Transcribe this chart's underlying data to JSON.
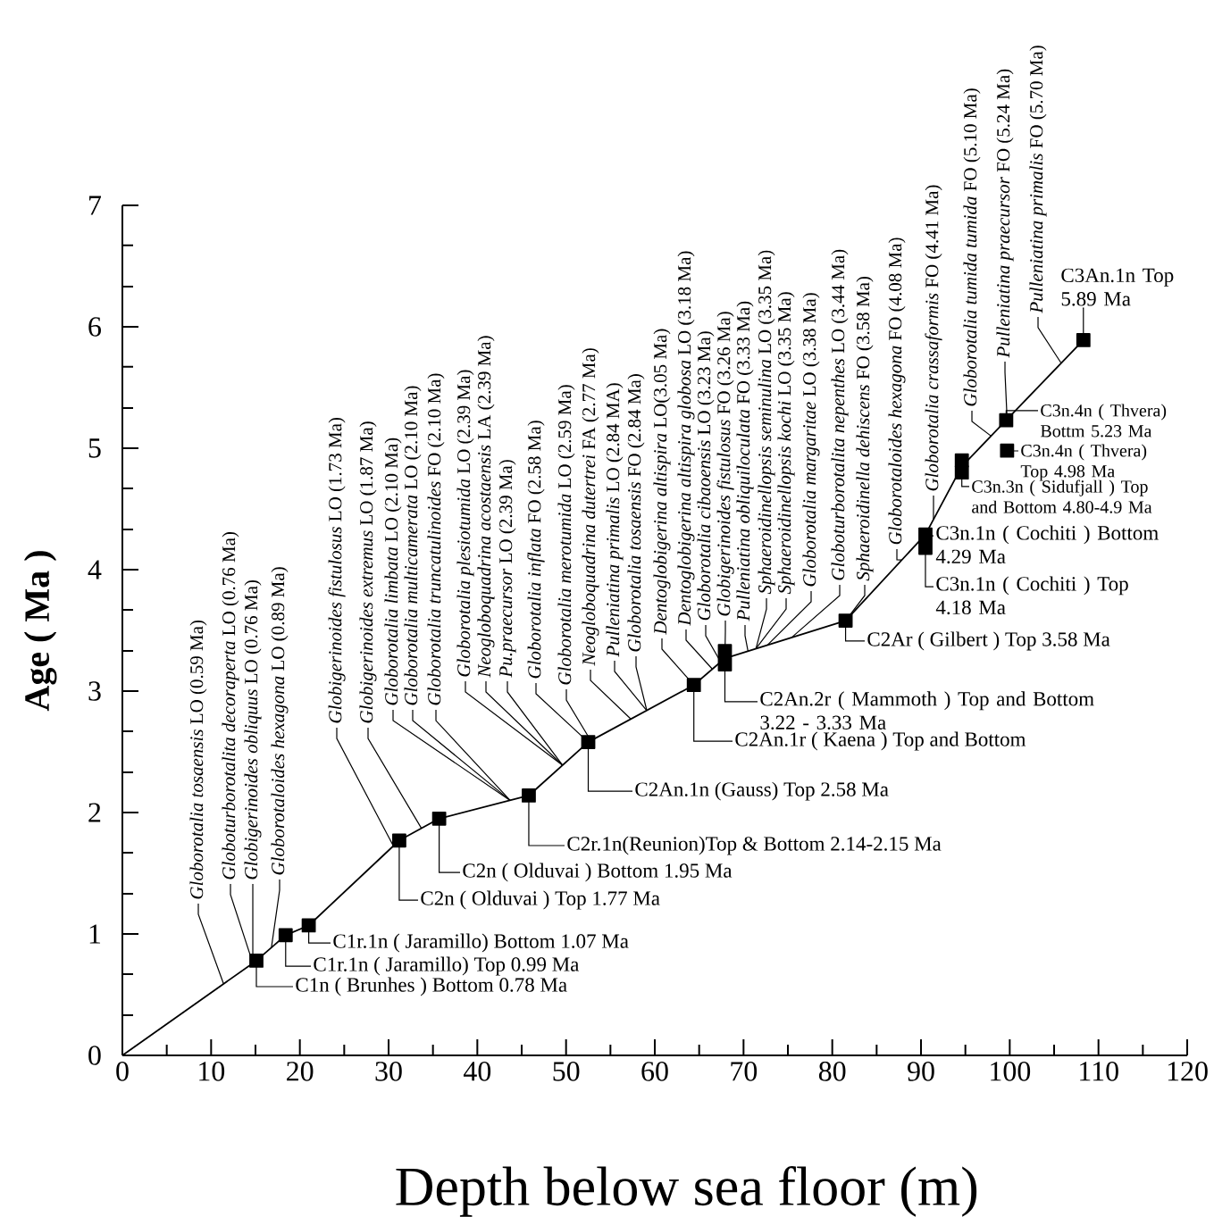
{
  "chart_data": {
    "type": "line",
    "xlabel": "Depth below sea floor (m)",
    "ylabel": "Age ( Ma )",
    "xlim": [
      0,
      120
    ],
    "ylim": [
      0,
      7
    ],
    "xticks": [
      0,
      {
        "value": 5,
        "label": null
      },
      10,
      {
        "value": 15,
        "label": null
      },
      20,
      {
        "value": 25,
        "label": null
      },
      30,
      {
        "value": 35,
        "label": null
      },
      40,
      {
        "value": 45,
        "label": null
      },
      50,
      {
        "value": 55,
        "label": null
      },
      60,
      {
        "value": 65,
        "label": null
      },
      70,
      {
        "value": 75,
        "label": null
      },
      80,
      {
        "value": 85,
        "label": null
      },
      90,
      {
        "value": 95,
        "label": null
      },
      100,
      {
        "value": 105,
        "label": null
      },
      110,
      {
        "value": 115,
        "label": null
      },
      120
    ],
    "yticks": [
      0,
      {
        "value": 0.33,
        "label": null
      },
      {
        "value": 0.67,
        "label": null
      },
      1,
      {
        "value": 1.33,
        "label": null
      },
      {
        "value": 1.67,
        "label": null
      },
      2,
      {
        "value": 2.33,
        "label": null
      },
      {
        "value": 2.67,
        "label": null
      },
      3,
      {
        "value": 3.33,
        "label": null
      },
      {
        "value": 3.67,
        "label": null
      },
      4,
      {
        "value": 4.33,
        "label": null
      },
      {
        "value": 4.67,
        "label": null
      },
      5,
      {
        "value": 5.33,
        "label": null
      },
      {
        "value": 5.67,
        "label": null
      },
      6,
      {
        "value": 6.33,
        "label": null
      },
      {
        "value": 6.67,
        "label": null
      },
      7
    ],
    "series": [
      {
        "color": "#000000",
        "marker": "none",
        "x": [
          0,
          15.1,
          18.4,
          21.0,
          31.2,
          35.7,
          45.8,
          52.5,
          64.4,
          67.9,
          81.5,
          90.5,
          94.6,
          99.6,
          108.3
        ],
        "values": [
          0,
          0.78,
          0.99,
          1.07,
          1.77,
          1.95,
          2.14,
          2.58,
          3.05,
          3.27,
          3.58,
          4.29,
          4.85,
          5.23,
          5.89
        ]
      },
      {
        "type": "scatter",
        "color": "#000000",
        "marker": "square",
        "x": [
          15.1,
          18.4,
          21.0,
          31.2,
          35.7,
          45.8,
          52.5,
          64.4,
          67.9,
          67.9,
          81.5,
          90.5,
          90.5,
          94.6,
          94.6,
          99.7,
          99.6,
          108.3
        ],
        "values": [
          0.78,
          0.99,
          1.07,
          1.77,
          1.95,
          2.14,
          2.58,
          3.05,
          3.22,
          3.33,
          3.58,
          4.18,
          4.29,
          4.8,
          4.9,
          4.98,
          5.23,
          5.89
        ]
      }
    ],
    "annotations": [
      {
        "text": "*Globorotalia tosaensis* LO (0.59 Ma)",
        "x": 11.4,
        "y": 0.59
      },
      {
        "text": "*Globoturborotalita decoraperta* LO (0.76 Ma)",
        "x": 14.7,
        "y": 0.76
      },
      {
        "text": "*Globigerinoides obliquus* LO (0.76 Ma)",
        "x": 14.7,
        "y": 0.76
      },
      {
        "text": "*Globorotaloides hexagona* LO (0.89 Ma)",
        "x": 16.8,
        "y": 0.89
      },
      {
        "text": "*Globigerinoides fistulosus* LO (1.73 Ma)",
        "x": 30.5,
        "y": 1.73
      },
      {
        "text": "*Globigerinoides extremus* LO (1.87 Ma)",
        "x": 33.7,
        "y": 1.87
      },
      {
        "text": "*Globorotalia limbata* LO (2.10 Ma)",
        "x": 43.7,
        "y": 2.1
      },
      {
        "text": "*Globorotalia multicamerata* LO (2.10 Ma)",
        "x": 43.7,
        "y": 2.1
      },
      {
        "text": "*Globorotalia truncatulinoides* FO (2.10 Ma)",
        "x": 43.7,
        "y": 2.1
      },
      {
        "text": "*Globorotalia plesiotumida* LO (2.39 Ma)",
        "x": 49.6,
        "y": 2.39
      },
      {
        "text": "*Neogloboquadrina acostaensis* LA (2.39 Ma)",
        "x": 49.6,
        "y": 2.39
      },
      {
        "text": "*Pu.praecursor* LO (2.39 Ma)",
        "x": 49.6,
        "y": 2.39
      },
      {
        "text": "*Globorotalia inflata* FO (2.58 Ma)",
        "x": 52.5,
        "y": 2.58
      },
      {
        "text": "*Globorotalia merotumida* LO (2.59 Ma)",
        "x": 52.8,
        "y": 2.59
      },
      {
        "text": "*Neogloboquadrina dutertrei* FA (2.77 Ma)",
        "x": 57.3,
        "y": 2.77
      },
      {
        "text": "*Pulleniatina primalis* LO (2.84 MA)",
        "x": 59.1,
        "y": 2.84
      },
      {
        "text": "*Globorotalia tosaensis* FO (2.84 Ma)",
        "x": 59.1,
        "y": 2.84
      },
      {
        "text": "*Dentoglobigerina altispira* LO(3.05 Ma)",
        "x": 64.4,
        "y": 3.05
      },
      {
        "text": "*Dentoglobigerina altispira globosa* LO (3.18 Ma)",
        "x": 66.5,
        "y": 3.18
      },
      {
        "text": "*Globorotalia cibaoensis* LO (3.23 Ma)",
        "x": 67.5,
        "y": 3.23
      },
      {
        "text": "*Globigerinoides fistulosus* FO (3.26 Ma)",
        "x": 67.9,
        "y": 3.26
      },
      {
        "text": "*Pulleniatina obliquiloculata* FO (3.33 Ma)",
        "x": 70.5,
        "y": 3.33
      },
      {
        "text": "*Sphaeroidinellopsis seminulina* LO (3.35 Ma)",
        "x": 71.4,
        "y": 3.35
      },
      {
        "text": "*Sphaeroidinellopsis kochi* LO (3.35 Ma)",
        "x": 71.4,
        "y": 3.35
      },
      {
        "text": "*Globorotalia margaritae* LO (3.38 Ma)",
        "x": 72.7,
        "y": 3.38
      },
      {
        "text": "*Globoturborotalita nepenthes* LO (3.44 Ma)",
        "x": 75.4,
        "y": 3.44
      },
      {
        "text": "*Sphaeroidinella dehiscens* FO (3.58 Ma)",
        "x": 81.5,
        "y": 3.58
      },
      {
        "text": "*Globorotaloides hexagona* FO (4.08 Ma)",
        "x": 87.8,
        "y": 4.08
      },
      {
        "text": "*Globorotalia crassaformis* FO (4.41 Ma)",
        "x": 91.4,
        "y": 4.41
      },
      {
        "text": "*Globorotalia tumida tumida* FO (5.10 Ma)",
        "x": 97.9,
        "y": 5.1
      },
      {
        "text": "*Pulleniatina praecursor* FO (5.24 Ma)",
        "x": 99.7,
        "y": 5.24
      },
      {
        "text": "*Pulleniatina primalis* FO (5.70 Ma)",
        "x": 105.8,
        "y": 5.7
      },
      {
        "text": "C1n ( Brunhes ) Bottom 0.78 Ma",
        "x": 15.1,
        "y": 0.78
      },
      {
        "text": "C1r.1n ( Jaramillo) Top 0.99 Ma",
        "x": 18.4,
        "y": 0.99
      },
      {
        "text": "C1r.1n ( Jaramillo) Bottom 1.07 Ma",
        "x": 21.0,
        "y": 1.07
      },
      {
        "text": "C2n ( Olduvai ) Top 1.77 Ma",
        "x": 31.2,
        "y": 1.77
      },
      {
        "text": "C2n ( Olduvai ) Bottom 1.95 Ma",
        "x": 35.7,
        "y": 1.95
      },
      {
        "text": "C2r.1n(Reunion)Top & Bottom 2.14-2.15 Ma",
        "x": 45.8,
        "y": 2.14
      },
      {
        "text": "C2An.1n (Gauss) Top 2.58 Ma",
        "x": 52.5,
        "y": 2.58
      },
      {
        "text": "C2An.1r ( Kaena ) Top and Bottom",
        "x": 64.4,
        "y": 3.05
      },
      {
        "text": "C2An.2r ( Mammoth ) Top and Bottom 3.22 - 3.33 Ma",
        "x": 67.9,
        "y": 3.22
      },
      {
        "text": "C2Ar ( Gilbert ) Top 3.58 Ma",
        "x": 81.5,
        "y": 3.58
      },
      {
        "text": "C3n.1n ( Cochiti ) Top 4.18 Ma",
        "x": 90.5,
        "y": 4.18
      },
      {
        "text": "C3n.1n ( Cochiti ) Bottom 4.29 Ma",
        "x": 90.5,
        "y": 4.29
      },
      {
        "text": "C3n.3n ( Sidufjall ) Top and Bottom 4.80-4.9 Ma",
        "x": 94.6,
        "y": 4.8
      },
      {
        "text": "C3n.4n ( Thvera) Top 4.98 Ma",
        "x": 99.7,
        "y": 4.98
      },
      {
        "text": "C3n.4n ( Thvera) Bottm 5.23 Ma",
        "x": 99.6,
        "y": 5.23
      },
      {
        "text": "C3An.1n Top 5.89 Ma",
        "x": 108.3,
        "y": 5.89
      }
    ]
  }
}
